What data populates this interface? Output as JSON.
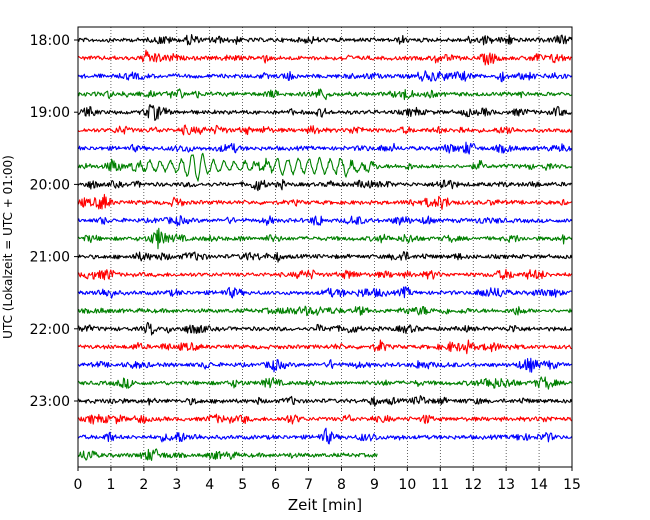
{
  "chart_data": {
    "type": "line",
    "title": "",
    "xlabel": "Zeit  [min]",
    "ylabel": "UTC (Lokalzeit = UTC + 01:00)",
    "xlim": [
      0,
      15
    ],
    "x_ticks": [
      0,
      1,
      2,
      3,
      4,
      5,
      6,
      7,
      8,
      9,
      10,
      11,
      12,
      13,
      14,
      15
    ],
    "y_ticks": [
      "18:00",
      "19:00",
      "20:00",
      "21:00",
      "22:00",
      "23:00"
    ],
    "vertical_grid": "dotted",
    "trace_interval_minutes": 15,
    "traces": [
      {
        "start": "18:00",
        "color": "#000000",
        "end_min": 15
      },
      {
        "start": "18:15",
        "color": "#ff0000",
        "end_min": 15
      },
      {
        "start": "18:30",
        "color": "#0000ff",
        "end_min": 15
      },
      {
        "start": "18:45",
        "color": "#008000",
        "end_min": 15
      },
      {
        "start": "19:00",
        "color": "#000000",
        "end_min": 15
      },
      {
        "start": "19:15",
        "color": "#ff0000",
        "end_min": 15
      },
      {
        "start": "19:30",
        "color": "#0000ff",
        "end_min": 15
      },
      {
        "start": "19:45",
        "color": "#008000",
        "end_min": 15,
        "event": {
          "from_min": 1.5,
          "to_min": 9.3,
          "peak_min": 3.6
        }
      },
      {
        "start": "20:00",
        "color": "#000000",
        "end_min": 15
      },
      {
        "start": "20:15",
        "color": "#ff0000",
        "end_min": 15
      },
      {
        "start": "20:30",
        "color": "#0000ff",
        "end_min": 15
      },
      {
        "start": "20:45",
        "color": "#008000",
        "end_min": 15
      },
      {
        "start": "21:00",
        "color": "#000000",
        "end_min": 15
      },
      {
        "start": "21:15",
        "color": "#ff0000",
        "end_min": 15
      },
      {
        "start": "21:30",
        "color": "#0000ff",
        "end_min": 15
      },
      {
        "start": "21:45",
        "color": "#008000",
        "end_min": 15
      },
      {
        "start": "22:00",
        "color": "#000000",
        "end_min": 15
      },
      {
        "start": "22:15",
        "color": "#ff0000",
        "end_min": 15
      },
      {
        "start": "22:30",
        "color": "#0000ff",
        "end_min": 15
      },
      {
        "start": "22:45",
        "color": "#008000",
        "end_min": 15
      },
      {
        "start": "23:00",
        "color": "#000000",
        "end_min": 15
      },
      {
        "start": "23:15",
        "color": "#ff0000",
        "end_min": 15
      },
      {
        "start": "23:30",
        "color": "#0000ff",
        "end_min": 15
      },
      {
        "start": "23:45",
        "color": "#008000",
        "end_min": 9.1
      }
    ]
  }
}
